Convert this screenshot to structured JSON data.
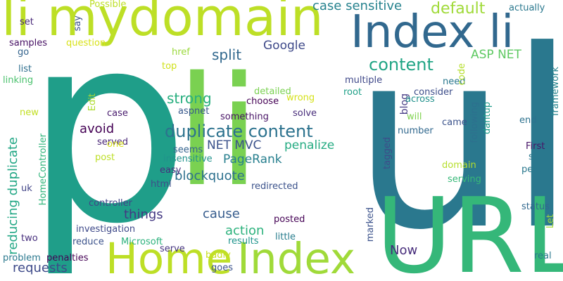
{
  "words": [
    {
      "text": "p",
      "color": "#1f9e89"
    },
    {
      "text": "ul",
      "color": "#2a788e"
    },
    {
      "text": "li",
      "color": "#7ad151"
    },
    {
      "text": "URL",
      "color": "#35b779"
    },
    {
      "text": "li mydomain",
      "color": "#bddf26"
    },
    {
      "text": "Index li",
      "color": "#31688e"
    },
    {
      "text": "Home",
      "color": "#bddf26"
    },
    {
      "text": "Index",
      "color": "#a0da39"
    },
    {
      "text": "duplicate content",
      "color": "#2c728e"
    },
    {
      "text": "content",
      "color": "#21a585"
    },
    {
      "text": "default",
      "color": "#a0da39"
    },
    {
      "text": "case sensitive",
      "color": "#26828e"
    },
    {
      "text": "split",
      "color": "#31688e"
    },
    {
      "text": "Google",
      "color": "#3e4989"
    },
    {
      "text": "ASP NET",
      "color": "#5ec962"
    },
    {
      "text": "strong",
      "color": "#29af7f"
    },
    {
      "text": "avoid",
      "color": "#440154"
    },
    {
      "text": "NET MVC",
      "color": "#3b528b"
    },
    {
      "text": "penalize",
      "color": "#25ab82"
    },
    {
      "text": "PageRank",
      "color": "#277f8e"
    },
    {
      "text": "blockquote",
      "color": "#2d708e"
    },
    {
      "text": "things",
      "color": "#443983"
    },
    {
      "text": "cause",
      "color": "#365c8d"
    },
    {
      "text": "action",
      "color": "#2db27d"
    },
    {
      "text": "requests",
      "color": "#3e4a89"
    },
    {
      "text": "Now",
      "color": "#472d7b"
    },
    {
      "text": "reducing duplicate",
      "color": "#22a785"
    },
    {
      "text": "blog",
      "color": "#443a83"
    },
    {
      "text": "Possible",
      "color": "#bddf26"
    },
    {
      "text": "actually",
      "color": "#2a788e"
    },
    {
      "text": "set",
      "color": "#482878"
    },
    {
      "text": "say",
      "color": "#3b528b"
    },
    {
      "text": "samples",
      "color": "#471164"
    },
    {
      "text": "question",
      "color": "#d8e219"
    },
    {
      "text": "go",
      "color": "#33638d"
    },
    {
      "text": "href",
      "color": "#9bd93c"
    },
    {
      "text": "top",
      "color": "#d0e11c"
    },
    {
      "text": "list",
      "color": "#2e6f8e"
    },
    {
      "text": "linking",
      "color": "#4ac16d"
    },
    {
      "text": "new",
      "color": "#c2df23"
    },
    {
      "text": "need",
      "color": "#2a788e"
    },
    {
      "text": "framework",
      "color": "#25848e"
    },
    {
      "text": "code",
      "color": "#b5de2b"
    },
    {
      "text": "multiple",
      "color": "#3f4889"
    },
    {
      "text": "root",
      "color": "#1fa088"
    },
    {
      "text": "consider",
      "color": "#3d4e8a"
    },
    {
      "text": "detailed",
      "color": "#7ad151"
    },
    {
      "text": "wrong",
      "color": "#d5e21a"
    },
    {
      "text": "choose",
      "color": "#440154"
    },
    {
      "text": "across",
      "color": "#21918c"
    },
    {
      "text": "aspnet",
      "color": "#38588c"
    },
    {
      "text": "something",
      "color": "#471365"
    },
    {
      "text": "solve",
      "color": "#472c7a"
    },
    {
      "text": "will",
      "color": "#7fd34e"
    },
    {
      "text": "came",
      "color": "#3b528b"
    },
    {
      "text": "end",
      "color": "#2c718e"
    },
    {
      "text": "Edit",
      "color": "#addc30"
    },
    {
      "text": "case",
      "color": "#481b6d"
    },
    {
      "text": "served",
      "color": "#482576"
    },
    {
      "text": "one",
      "color": "#d8e219"
    },
    {
      "text": "post",
      "color": "#bddf26"
    },
    {
      "text": "seems",
      "color": "#33638d"
    },
    {
      "text": "insensitive",
      "color": "#20928c"
    },
    {
      "text": "easy",
      "color": "#472f7d"
    },
    {
      "text": "number",
      "color": "#31688e"
    },
    {
      "text": "tagged",
      "color": "#3d4d8a"
    },
    {
      "text": "following",
      "color": "#2d708e"
    },
    {
      "text": "dantup",
      "color": "#1e9b8a"
    },
    {
      "text": "First",
      "color": "#481668"
    },
    {
      "text": "start",
      "color": "#2a788e"
    },
    {
      "text": "people",
      "color": "#2a788e"
    },
    {
      "text": "domain",
      "color": "#b5de2b"
    },
    {
      "text": "serving",
      "color": "#37b878"
    },
    {
      "text": "HomeController",
      "color": "#31b57b"
    },
    {
      "text": "uk",
      "color": "#414487"
    },
    {
      "text": "html",
      "color": "#3d4e8a"
    },
    {
      "text": "redirected",
      "color": "#3b528b"
    },
    {
      "text": "controller",
      "color": "#404588"
    },
    {
      "text": "investigation",
      "color": "#3e4989"
    },
    {
      "text": "two",
      "color": "#472f7d"
    },
    {
      "text": "reduce",
      "color": "#3b528b"
    },
    {
      "text": "Microsoft",
      "color": "#2db27d"
    },
    {
      "text": "posted",
      "color": "#440154"
    },
    {
      "text": "little",
      "color": "#287d8e"
    },
    {
      "text": "results",
      "color": "#1f948c"
    },
    {
      "text": "serve",
      "color": "#463480"
    },
    {
      "text": "badly",
      "color": "#c8e020"
    },
    {
      "text": "goes",
      "color": "#3b528b"
    },
    {
      "text": "marked",
      "color": "#3b528b"
    },
    {
      "text": "Let",
      "color": "#a2da37"
    },
    {
      "text": "status",
      "color": "#31688e"
    },
    {
      "text": "real",
      "color": "#2a788e"
    },
    {
      "text": "problem",
      "color": "#2a788e"
    },
    {
      "text": "penalties",
      "color": "#440154"
    }
  ]
}
